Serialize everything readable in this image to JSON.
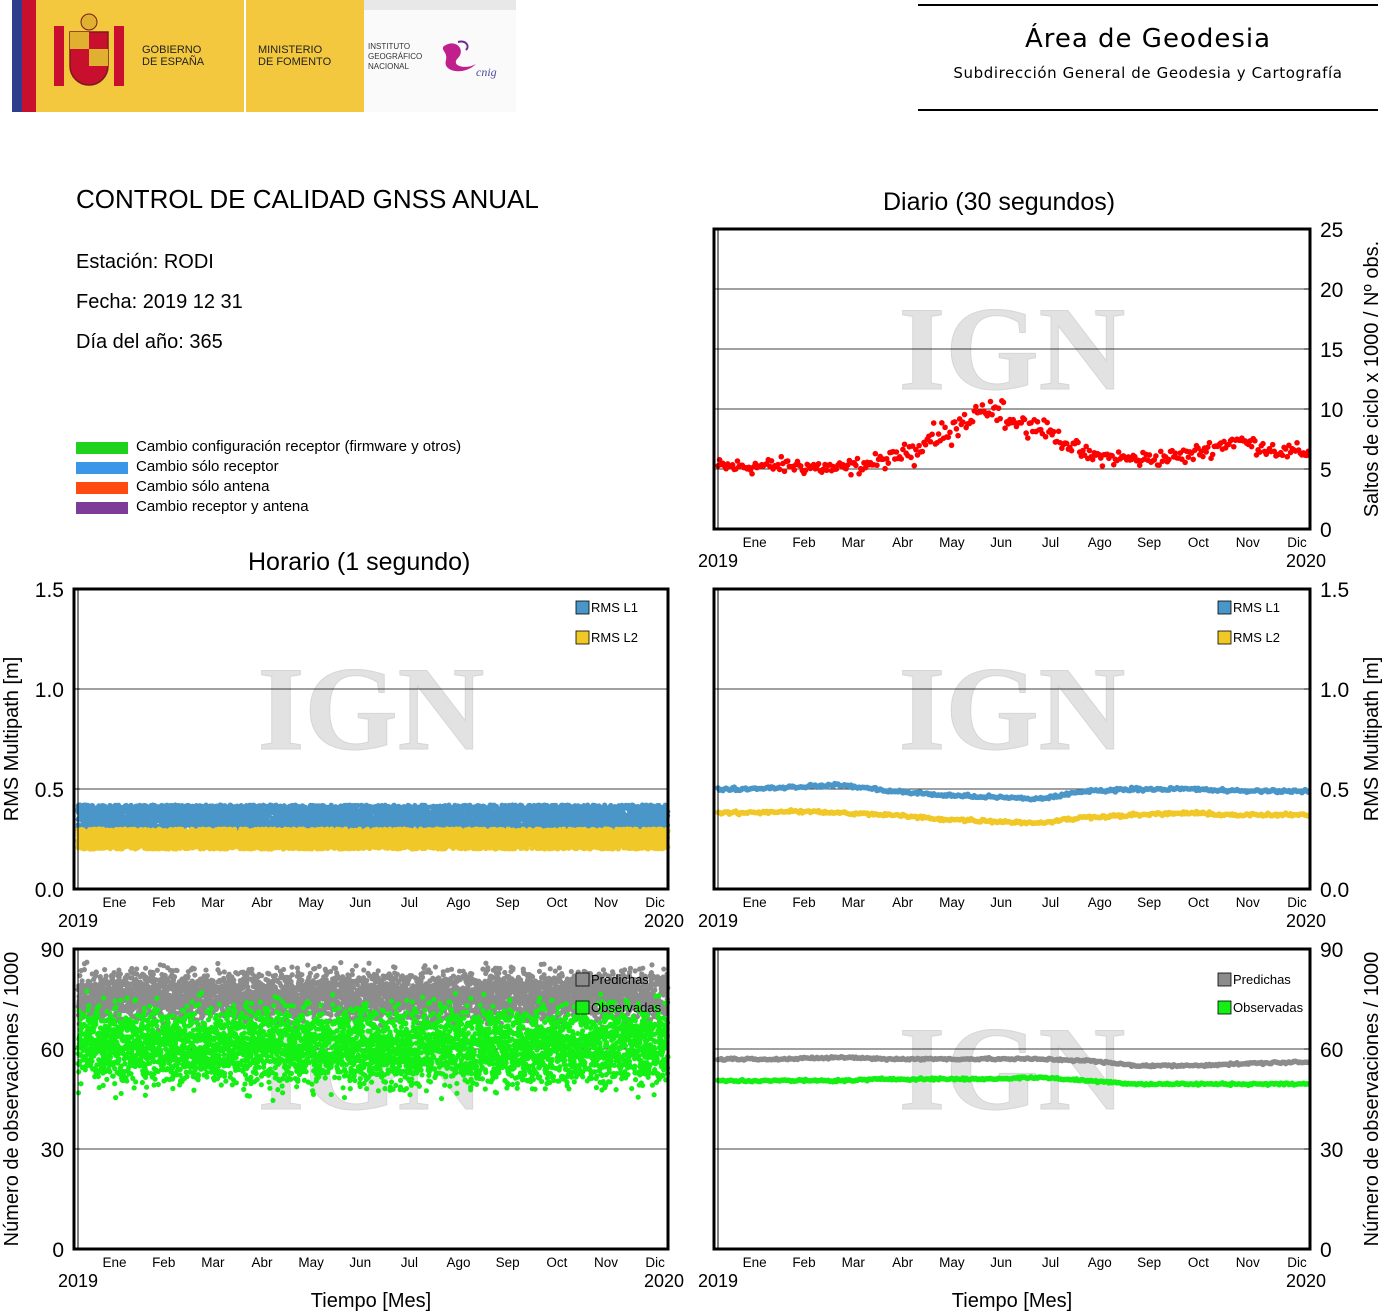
{
  "header": {
    "gobierno": "GOBIERNO\nDE ESPAÑA",
    "ministerio": "MINISTERIO\nDE FOMENTO",
    "instituto": "INSTITUTO\nGEOGRÁFICO\nNACIONAL",
    "cnig": "cnig",
    "area_title": "Área de Geodesia",
    "area_subtitle": "Subdirección General de Geodesia y Cartografía"
  },
  "report": {
    "title": "CONTROL DE CALIDAD GNSS ANUAL",
    "station": "Estación: RODI",
    "date": "Fecha: 2019 12 31",
    "doy": "Día del año: 365"
  },
  "legend": [
    {
      "label": "Cambio configuración receptor (firmware y otros)",
      "color": "#1ed21e"
    },
    {
      "label": "Cambio sólo receptor",
      "color": "#3a96e6"
    },
    {
      "label": "Cambio sólo antena",
      "color": "#ff4a10"
    },
    {
      "label": "Cambio receptor y antena",
      "color": "#7d3c98"
    }
  ],
  "sections": {
    "hourly": "Horario (1 segundo)",
    "daily": "Diario (30 segundos)"
  },
  "watermark": "IGN",
  "chart_data": [
    {
      "id": "daily-cycle-slips",
      "type": "scatter",
      "ylabel": "Saltos de ciclo x 1000 / Nº obs.",
      "ylim": [
        0,
        25
      ],
      "yticks": [
        "0",
        "5",
        "10",
        "15",
        "20",
        "25"
      ],
      "months": [
        "Ene",
        "Feb",
        "Mar",
        "Abr",
        "May",
        "Jun",
        "Jul",
        "Ago",
        "Sep",
        "Oct",
        "Nov",
        "Dic"
      ],
      "x_start": "2019",
      "x_end": "2020",
      "grid": true,
      "series": [
        {
          "color": "#ff0000",
          "monthly_mean": [
            5.2,
            5.3,
            5.0,
            5.8,
            7.8,
            9.8,
            8.6,
            6.1,
            5.8,
            6.1,
            7.4,
            6.4
          ]
        }
      ]
    },
    {
      "id": "hourly-multipath",
      "type": "scatter",
      "ylabel": "RMS Multipath [m]",
      "ylim": [
        0,
        1.5
      ],
      "yticks": [
        "0.0",
        "0.5",
        "1.0",
        "1.5"
      ],
      "months": [
        "Ene",
        "Feb",
        "Mar",
        "Abr",
        "May",
        "Jun",
        "Jul",
        "Ago",
        "Sep",
        "Oct",
        "Nov",
        "Dic"
      ],
      "x_start": "2019",
      "x_end": "2020",
      "grid": true,
      "legend_position": "top-right",
      "series": [
        {
          "name": "RMS L1",
          "color": "#4a96c8",
          "range": [
            0.3,
            0.42
          ]
        },
        {
          "name": "RMS L2",
          "color": "#f0c828",
          "range": [
            0.2,
            0.3
          ]
        }
      ]
    },
    {
      "id": "daily-multipath",
      "type": "scatter",
      "ylabel": "RMS Multipath [m]",
      "ylim": [
        0,
        1.5
      ],
      "yticks": [
        "0.0",
        "0.5",
        "1.0",
        "1.5"
      ],
      "months": [
        "Ene",
        "Feb",
        "Mar",
        "Abr",
        "May",
        "Jun",
        "Jul",
        "Ago",
        "Sep",
        "Oct",
        "Nov",
        "Dic"
      ],
      "x_start": "2019",
      "x_end": "2020",
      "grid": true,
      "legend_position": "top-right",
      "series": [
        {
          "name": "RMS L1",
          "color": "#4a96c8",
          "monthly_mean": [
            0.5,
            0.51,
            0.52,
            0.49,
            0.47,
            0.46,
            0.45,
            0.49,
            0.5,
            0.5,
            0.49,
            0.49
          ]
        },
        {
          "name": "RMS L2",
          "color": "#f0c828",
          "monthly_mean": [
            0.38,
            0.39,
            0.38,
            0.37,
            0.35,
            0.34,
            0.33,
            0.36,
            0.37,
            0.38,
            0.37,
            0.37
          ]
        }
      ]
    },
    {
      "id": "hourly-observations",
      "type": "scatter",
      "ylabel": "Número de observaciones / 1000",
      "xlabel": "Tiempo [Mes]",
      "ylim": [
        0,
        90
      ],
      "yticks": [
        "0",
        "30",
        "60",
        "90"
      ],
      "months": [
        "Ene",
        "Feb",
        "Mar",
        "Abr",
        "May",
        "Jun",
        "Jul",
        "Ago",
        "Sep",
        "Oct",
        "Nov",
        "Dic"
      ],
      "x_start": "2019",
      "x_end": "2020",
      "grid": true,
      "legend_position": "top-right",
      "series": [
        {
          "name": "Predichas",
          "color": "#8c8c8c",
          "range": [
            62,
            86
          ]
        },
        {
          "name": "Observadas",
          "color": "#14f014",
          "range": [
            42,
            80
          ]
        }
      ]
    },
    {
      "id": "daily-observations",
      "type": "scatter",
      "ylabel": "Número de observaciones / 1000",
      "xlabel": "Tiempo [Mes]",
      "ylim": [
        0,
        90
      ],
      "yticks": [
        "0",
        "30",
        "60",
        "90"
      ],
      "months": [
        "Ene",
        "Feb",
        "Mar",
        "Abr",
        "May",
        "Jun",
        "Jul",
        "Ago",
        "Sep",
        "Oct",
        "Nov",
        "Dic"
      ],
      "x_start": "2019",
      "x_end": "2020",
      "grid": true,
      "legend_position": "top-right",
      "series": [
        {
          "name": "Predichas",
          "color": "#8c8c8c",
          "monthly_mean": [
            57,
            57,
            57.5,
            57,
            57,
            57,
            57,
            56.5,
            55,
            55,
            55.5,
            56
          ]
        },
        {
          "name": "Observadas",
          "color": "#14f014",
          "monthly_mean": [
            50.5,
            50.5,
            50.5,
            51,
            51,
            51,
            51.5,
            50.5,
            49.5,
            49.5,
            49.5,
            49.5
          ]
        }
      ]
    }
  ]
}
